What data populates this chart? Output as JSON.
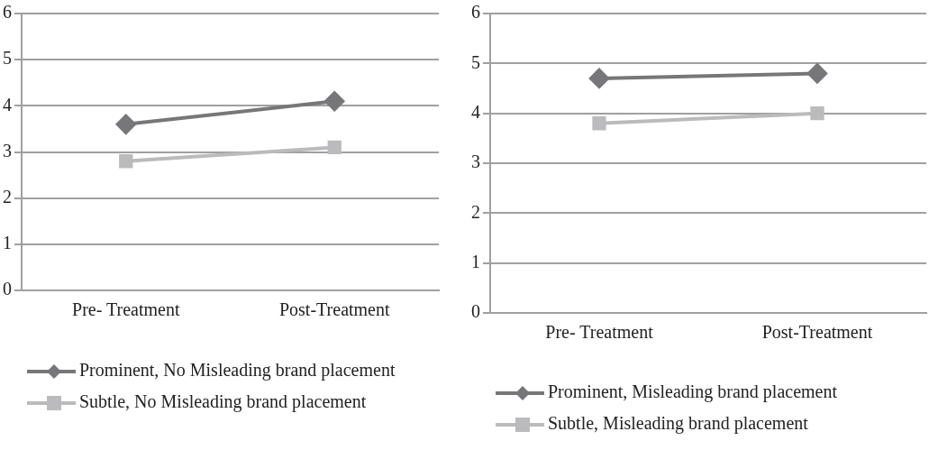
{
  "chart_data": [
    {
      "type": "line",
      "categories": [
        "Pre- Treatment",
        "Post-Treatment"
      ],
      "ylim": [
        0,
        6
      ],
      "yticks": [
        0,
        1,
        2,
        3,
        4,
        5,
        6
      ],
      "grid": "y",
      "legend": "bottom left",
      "series": [
        {
          "name": "Prominent, No Misleading brand placement",
          "color": "#77777a",
          "marker": "diamond",
          "values": [
            3.6,
            4.1
          ]
        },
        {
          "name": "Subtle, No Misleading brand placement",
          "color": "#bbbbbd",
          "marker": "square",
          "values": [
            2.8,
            3.1
          ]
        }
      ]
    },
    {
      "type": "line",
      "categories": [
        "Pre- Treatment",
        "Post-Treatment"
      ],
      "ylim": [
        0,
        6
      ],
      "yticks": [
        0,
        1,
        2,
        3,
        4,
        5,
        6
      ],
      "grid": "y",
      "legend": "bottom left",
      "series": [
        {
          "name": "Prominent, Misleading brand placement",
          "color": "#77777a",
          "marker": "diamond",
          "values": [
            4.7,
            4.8
          ]
        },
        {
          "name": "Subtle, Misleading brand placement",
          "color": "#bbbbbd",
          "marker": "square",
          "values": [
            3.8,
            4.0
          ]
        }
      ]
    }
  ]
}
